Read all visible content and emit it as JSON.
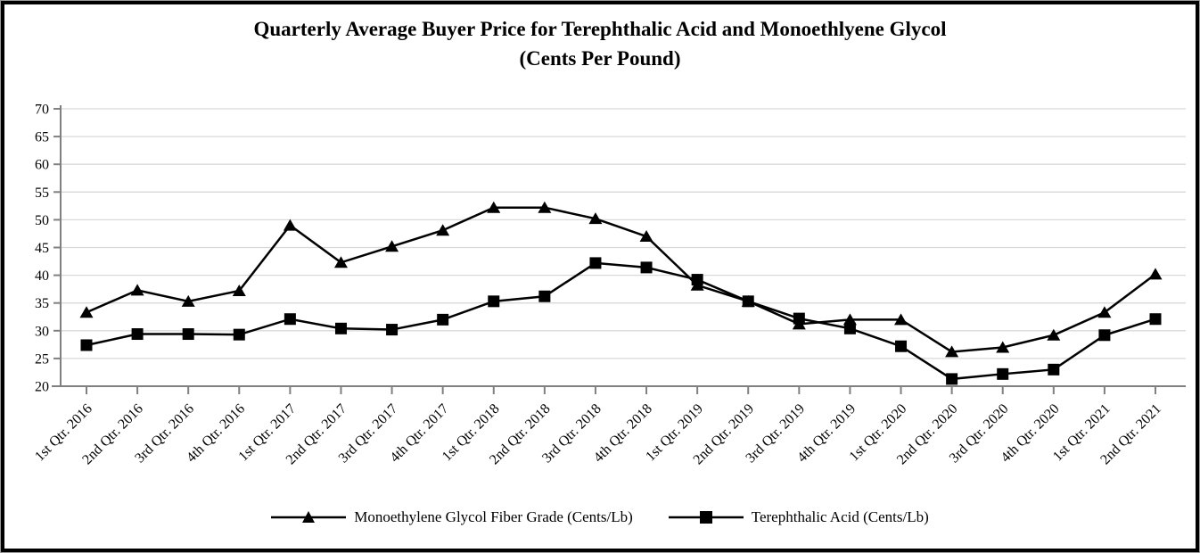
{
  "title": {
    "line1": "Quarterly Average Buyer Price for Terephthalic Acid and Monoethlyene Glycol",
    "line2": "(Cents Per Pound)"
  },
  "chart_data": {
    "type": "line",
    "title": "Quarterly Average Buyer Price for Terephthalic Acid and Monoethlyene Glycol (Cents Per Pound)",
    "categories": [
      "1st Qtr. 2016",
      "2nd Qtr. 2016",
      "3rd Qtr. 2016",
      "4th Qtr. 2016",
      "1st Qtr. 2017",
      "2nd Qtr. 2017",
      "3rd Qtr. 2017",
      "4th Qtr. 2017",
      "1st Qtr. 2018",
      "2nd Qtr. 2018",
      "3rd Qtr. 2018",
      "4th Qtr. 2018",
      "1st Qtr. 2019",
      "2nd Qtr. 2019",
      "3rd Qtr. 2019",
      "4th Qtr. 2019",
      "1st Qtr. 2020",
      "2nd Qtr. 2020",
      "3rd Qtr. 2020",
      "4th Qtr. 2020",
      "1st Qtr. 2021",
      "2nd Qtr. 2021"
    ],
    "series": [
      {
        "name": "Monoethylene Glycol Fiber Grade (Cents/Lb)",
        "marker": "triangle",
        "values": [
          33.3,
          37.3,
          35.3,
          37.2,
          49.0,
          42.3,
          45.2,
          48.1,
          52.2,
          52.2,
          50.2,
          47.0,
          38.2,
          35.3,
          31.2,
          32.0,
          32.0,
          26.2,
          27.0,
          29.2,
          33.3,
          40.2
        ]
      },
      {
        "name": "Terephthalic Acid (Cents/Lb)",
        "marker": "square",
        "values": [
          27.4,
          29.4,
          29.4,
          29.3,
          32.1,
          30.4,
          30.2,
          32.0,
          35.3,
          36.2,
          42.2,
          41.4,
          39.2,
          35.3,
          32.2,
          30.4,
          27.2,
          21.3,
          22.2,
          23.0,
          29.2,
          32.1
        ]
      }
    ],
    "xlabel": "",
    "ylabel": "",
    "ylim": [
      20,
      70
    ],
    "yticks": [
      20,
      25,
      30,
      35,
      40,
      45,
      50,
      55,
      60,
      65,
      70
    ],
    "grid": true,
    "legend_position": "bottom",
    "colors": {
      "series": "#000000",
      "grid": "#d9d9d9",
      "axis": "#808080",
      "text": "#000000",
      "background": "#ffffff"
    }
  }
}
